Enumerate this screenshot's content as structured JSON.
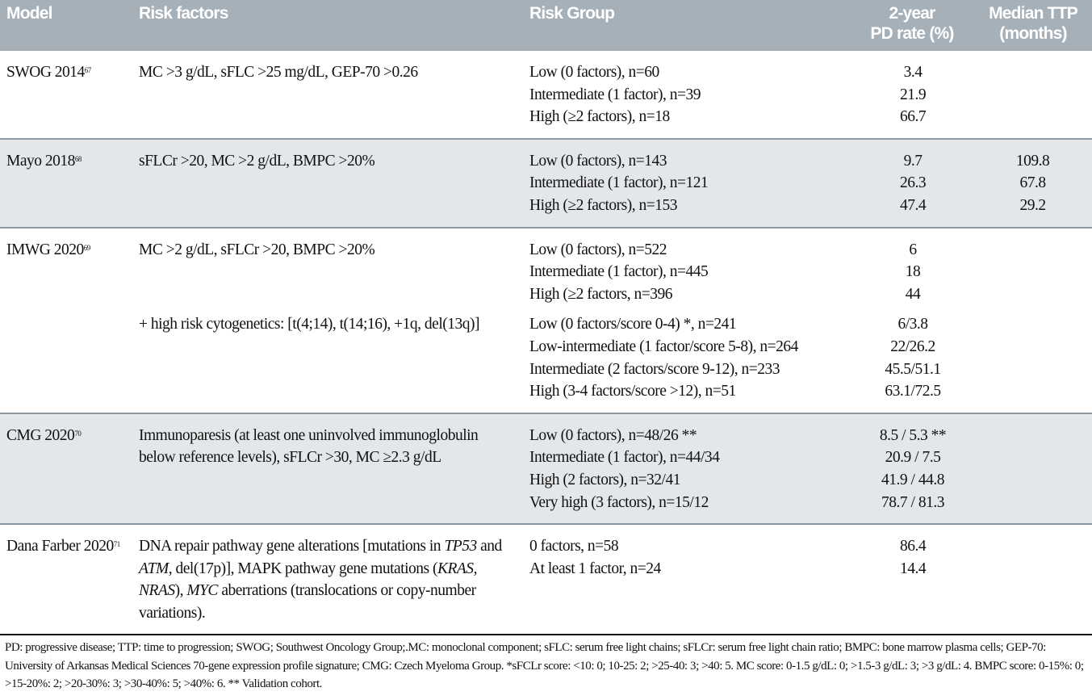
{
  "headers": {
    "model": "Model",
    "risk_factors": "Risk factors",
    "risk_group": "Risk Group",
    "pd_rate_line1": "2-year",
    "pd_rate_line2": "PD rate (%)",
    "ttp_line1": "Median TTP",
    "ttp_line2": "(months)"
  },
  "rows": [
    {
      "model": "SWOG 2014",
      "ref": "67",
      "factors": "MC >3 g/dL, sFLC >25 mg/dL, GEP-70 >0.26",
      "groups": [
        "Low (0 factors), n=60",
        "Intermediate (1 factor), n=39",
        "High (≥2 factors), n=18"
      ],
      "pd": [
        "3.4",
        "21.9",
        "66.7"
      ],
      "ttp": []
    },
    {
      "model": "Mayo 2018",
      "ref": "68",
      "factors": "sFLCr >20, MC >2 g/dL, BMPC >20%",
      "groups": [
        "Low (0 factors), n=143",
        "Intermediate (1 factor), n=121",
        "High (≥2 factors), n=153"
      ],
      "pd": [
        "9.7",
        "26.3",
        "47.4"
      ],
      "ttp": [
        "109.8",
        "67.8",
        "29.2"
      ]
    },
    {
      "model": "IMWG 2020",
      "ref": "69",
      "factors": "MC >2 g/dL, sFLCr >20,  BMPC >20%",
      "factors2": "+ high risk cytogenetics: [t(4;14), t(14;16), +1q, del(13q)]",
      "groups": [
        "Low (0 factors), n=522",
        "Intermediate (1 factor), n=445",
        "High (≥2 factors, n=396"
      ],
      "pd": [
        "6",
        "18",
        "44"
      ],
      "groups2": [
        "Low (0 factors/score 0-4) *, n=241",
        "Low-intermediate (1 factor/score 5-8), n=264",
        "Intermediate (2 factors/score 9-12), n=233",
        "High (3-4 factors/score >12), n=51"
      ],
      "pd2": [
        "6/3.8",
        "22/26.2",
        "45.5/51.1",
        "63.1/72.5"
      ],
      "ttp": []
    },
    {
      "model": "CMG 2020",
      "ref": "70",
      "factors": "Immunoparesis (at least one uninvolved immunoglobulin below reference levels), sFLCr >30, MC ≥2.3 g/dL",
      "groups": [
        "Low (0 factors), n=48/26 **",
        "Intermediate (1 factor), n=44/34",
        "High (2 factors), n=32/41",
        "Very high (3 factors), n=15/12"
      ],
      "pd": [
        "8.5 / 5.3 **",
        "20.9 / 7.5",
        "41.9 / 44.8",
        "78.7 / 81.3"
      ],
      "ttp": []
    },
    {
      "model": "Dana Farber 2020",
      "ref": "71",
      "factors_parts": [
        {
          "text": "DNA repair pathway gene alterations [mutations in ",
          "italic": false
        },
        {
          "text": "TP53",
          "italic": true
        },
        {
          "text": " and ",
          "italic": false
        },
        {
          "text": "ATM",
          "italic": true
        },
        {
          "text": ", del(17p)], MAPK pathway gene mutations (",
          "italic": false
        },
        {
          "text": "KRAS",
          "italic": true
        },
        {
          "text": ", ",
          "italic": false
        },
        {
          "text": "NRAS",
          "italic": true
        },
        {
          "text": "), ",
          "italic": false
        },
        {
          "text": "MYC",
          "italic": true
        },
        {
          "text": " aberrations (translocations or copy-number variations).",
          "italic": false
        }
      ],
      "groups": [
        "0 factors, n=58",
        "At least 1 factor, n=24"
      ],
      "pd": [
        "86.4",
        "14.4"
      ],
      "ttp": []
    }
  ],
  "footnote": "PD: progressive disease; TTP: time to progression; SWOG; Southwest Oncology Group;.MC: monoclonal component; sFLC: serum free light chains; sFLCr: serum free light chain ratio; BMPC: bone marrow plasma cells; GEP-70: University of Arkansas Medical Sciences 70-gene expression profile signature;  CMG: Czech Myeloma Group. *sFCLr score: <10: 0; 10-25: 2; >25-40: 3; >40: 5. MC score: 0-1.5 g/dL: 0; >1.5-3 g/dL: 3; >3 g/dL: 4. BMPC score: 0-15%: 0; >15-20%: 2; >20-30%: 3; >30-40%: 5;  >40%: 6.  ** Validation cohort.",
  "colors": {
    "header_bg": "#a6b0b9",
    "shade_bg": "#e4e7ea",
    "separator": "#8b98a2"
  }
}
